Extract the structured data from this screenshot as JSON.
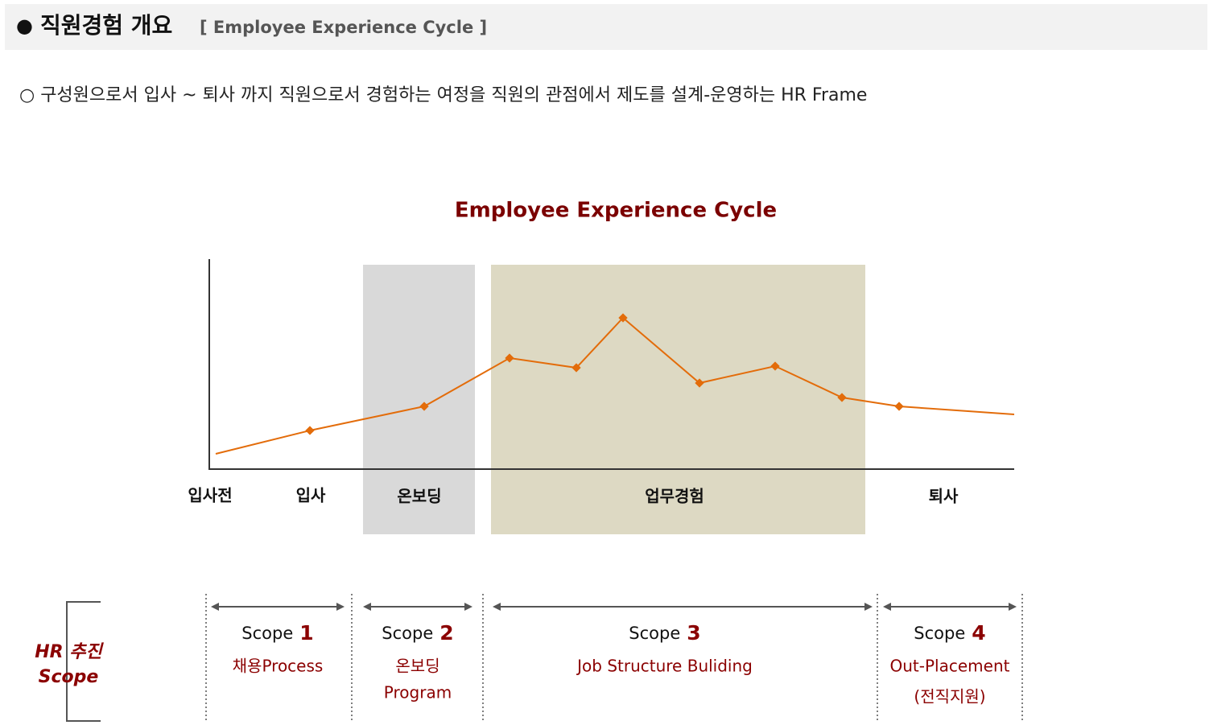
{
  "header": {
    "bullet": "●",
    "title": "직원경험 개요",
    "subtitle": "[ Employee Experience Cycle ]"
  },
  "description": "○ 구성원으로서 입사 ~ 퇴사 까지 직원으로서 경험하는 여정을 직원의 관점에서 제도를 설계-운영하는 HR Frame",
  "diagram": {
    "title": "Employee Experience Cycle",
    "stages": [
      "입사전",
      "입사",
      "온보딩",
      "업무경험",
      "퇴사"
    ]
  },
  "hr_scope": {
    "lines": [
      "HR 추진",
      "Scope"
    ]
  },
  "scopes": [
    {
      "label": "Scope",
      "number": "1",
      "lines": [
        "채용Process"
      ]
    },
    {
      "label": "Scope",
      "number": "2",
      "lines": [
        "온보딩",
        "Program"
      ]
    },
    {
      "label": "Scope",
      "number": "3",
      "lines": [
        "Job Structure Buliding"
      ]
    },
    {
      "label": "Scope",
      "number": "4",
      "lines": [
        "Out-Placement",
        "(전직지원)"
      ]
    }
  ]
}
